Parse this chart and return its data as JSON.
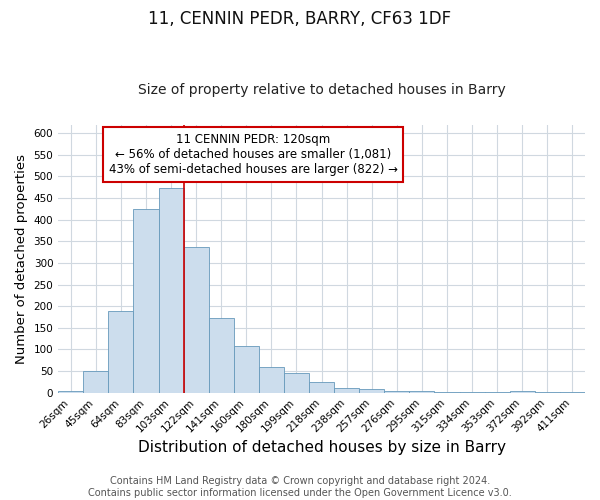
{
  "title": "11, CENNIN PEDR, BARRY, CF63 1DF",
  "subtitle": "Size of property relative to detached houses in Barry",
  "xlabel": "Distribution of detached houses by size in Barry",
  "ylabel": "Number of detached properties",
  "categories": [
    "26sqm",
    "45sqm",
    "64sqm",
    "83sqm",
    "103sqm",
    "122sqm",
    "141sqm",
    "160sqm",
    "180sqm",
    "199sqm",
    "218sqm",
    "238sqm",
    "257sqm",
    "276sqm",
    "295sqm",
    "315sqm",
    "334sqm",
    "353sqm",
    "372sqm",
    "392sqm",
    "411sqm"
  ],
  "values": [
    5,
    50,
    188,
    425,
    473,
    338,
    172,
    107,
    60,
    45,
    24,
    11,
    8,
    3,
    3,
    2,
    1,
    1,
    5,
    2,
    2
  ],
  "bar_color": "#ccdded",
  "bar_edge_color": "#6699bb",
  "vline_x_index": 5,
  "vline_color": "#cc0000",
  "annotation_text": "11 CENNIN PEDR: 120sqm\n← 56% of detached houses are smaller (1,081)\n43% of semi-detached houses are larger (822) →",
  "annotation_box_color": "#ffffff",
  "annotation_box_edge_color": "#cc0000",
  "ylim": [
    0,
    620
  ],
  "yticks": [
    0,
    50,
    100,
    150,
    200,
    250,
    300,
    350,
    400,
    450,
    500,
    550,
    600
  ],
  "footer_text": "Contains HM Land Registry data © Crown copyright and database right 2024.\nContains public sector information licensed under the Open Government Licence v3.0.",
  "fig_background_color": "#ffffff",
  "ax_background_color": "#ffffff",
  "grid_color": "#d0d8e0",
  "title_fontsize": 12,
  "subtitle_fontsize": 10,
  "xlabel_fontsize": 11,
  "ylabel_fontsize": 9.5,
  "tick_fontsize": 7.5,
  "annotation_fontsize": 8.5,
  "footer_fontsize": 7
}
